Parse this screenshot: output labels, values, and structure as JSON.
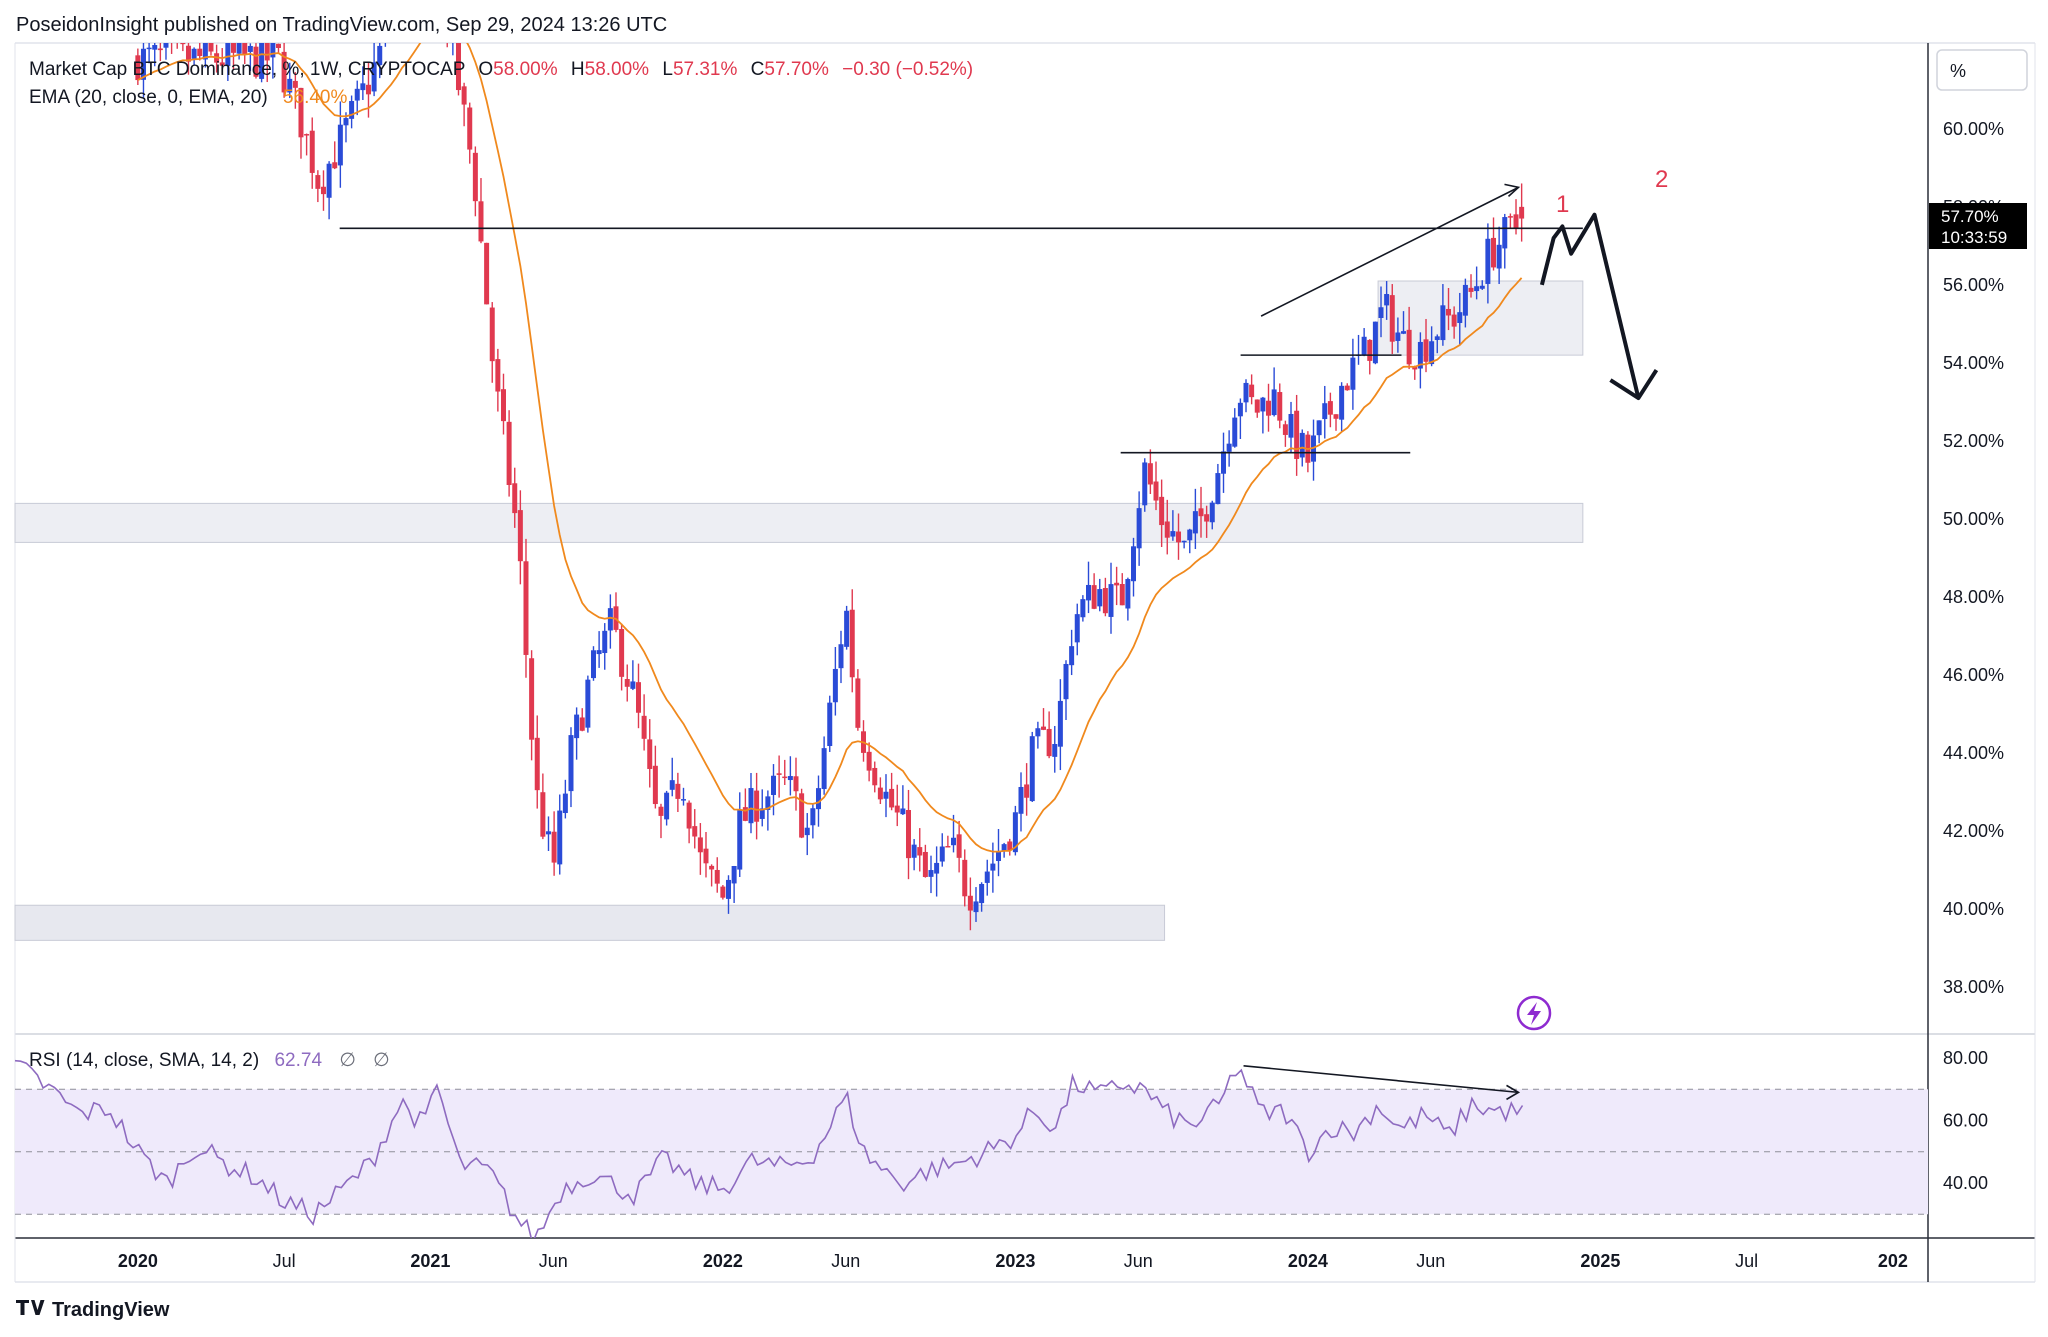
{
  "publisher_line": "PoseidonInsight published on TradingView.com, Sep 29, 2024 13:26 UTC",
  "legend": {
    "symbol": "Market Cap BTC Dominance, %, 1W, CRYPTOCAP",
    "ohlc": {
      "o_label": "O",
      "o": "58.00%",
      "h_label": "H",
      "h": "58.00%",
      "l_label": "L",
      "l": "57.31%",
      "c_label": "C",
      "c": "57.70%",
      "change": "−0.30 (−0.52%)"
    },
    "ema_label": "EMA (20, close, 0, EMA, 20)",
    "ema_value": "56.40%"
  },
  "rsi_legend": {
    "label": "RSI (14, close, SMA, 14, 2)",
    "value": "62.74",
    "extra1": "∅",
    "extra2": "∅"
  },
  "scale_mode": "%",
  "price_tag": {
    "value": "57.70%",
    "countdown": "10:33:59"
  },
  "annotations": {
    "wave1": "1",
    "wave2": "2"
  },
  "brand": "TradingView",
  "colors": {
    "up": "#2a4bd7",
    "down": "#e0394f",
    "ema": "#f0891d",
    "rsi": "#8e6bc0",
    "rsi_band": "#efeafb",
    "zone": "#e6e7ee",
    "wave_label": "#e0394f",
    "tag_bg": "#000000"
  },
  "chart_data": [
    {
      "type": "candlestick",
      "title": "Market Cap BTC Dominance, %, 1W, CRYPTOCAP",
      "ylim": [
        36.8,
        62.2
      ],
      "y_ticks": [
        "60.00%",
        "58.00%",
        "56.00%",
        "54.00%",
        "52.00%",
        "50.00%",
        "48.00%",
        "46.00%",
        "44.00%",
        "42.00%",
        "40.00%",
        "38.00%"
      ],
      "y_tick_values": [
        60,
        58,
        56,
        54,
        52,
        50,
        48,
        46,
        44,
        42,
        40,
        38
      ],
      "x_ticks": [
        "2020",
        "Jul",
        "2021",
        "Jun",
        "2022",
        "Jun",
        "2023",
        "Jun",
        "2024",
        "Jun",
        "2025",
        "Jul",
        "202"
      ],
      "x_tick_years": [
        2020.0,
        2020.5,
        2021.0,
        2021.42,
        2022.0,
        2022.42,
        2023.0,
        2023.42,
        2024.0,
        2024.42,
        2025.0,
        2025.5,
        2026.0
      ],
      "xlim": [
        2019.58,
        2026.12
      ],
      "anchors": [
        [
          2020.48,
          61.8
        ],
        [
          2020.55,
          60.4
        ],
        [
          2020.62,
          58.6
        ],
        [
          2020.7,
          59.8
        ],
        [
          2020.8,
          61.4
        ],
        [
          2020.9,
          63.5
        ],
        [
          2021.02,
          64.2
        ],
        [
          2021.08,
          61.8
        ],
        [
          2021.15,
          58.8
        ],
        [
          2021.22,
          53.5
        ],
        [
          2021.3,
          49.5
        ],
        [
          2021.36,
          43.0
        ],
        [
          2021.42,
          41.0
        ],
        [
          2021.48,
          44.0
        ],
        [
          2021.55,
          46.0
        ],
        [
          2021.62,
          47.3
        ],
        [
          2021.7,
          45.3
        ],
        [
          2021.78,
          42.0
        ],
        [
          2021.86,
          43.4
        ],
        [
          2021.93,
          41.0
        ],
        [
          2022.0,
          40.3
        ],
        [
          2022.06,
          42.2
        ],
        [
          2022.12,
          42.8
        ],
        [
          2022.22,
          43.2
        ],
        [
          2022.3,
          41.8
        ],
        [
          2022.36,
          44.8
        ],
        [
          2022.42,
          47.8
        ],
        [
          2022.46,
          44.8
        ],
        [
          2022.55,
          43.0
        ],
        [
          2022.62,
          42.0
        ],
        [
          2022.7,
          40.6
        ],
        [
          2022.78,
          41.6
        ],
        [
          2022.84,
          40.4
        ],
        [
          2022.92,
          41.2
        ],
        [
          2023.0,
          42.3
        ],
        [
          2023.06,
          44.0
        ],
        [
          2023.14,
          44.5
        ],
        [
          2023.2,
          47.5
        ],
        [
          2023.28,
          48.2
        ],
        [
          2023.36,
          47.8
        ],
        [
          2023.44,
          51.3
        ],
        [
          2023.5,
          50.0
        ],
        [
          2023.58,
          49.2
        ],
        [
          2023.64,
          50.1
        ],
        [
          2023.7,
          51.5
        ],
        [
          2023.76,
          53.3
        ],
        [
          2023.82,
          52.8
        ],
        [
          2023.88,
          53.2
        ],
        [
          2023.94,
          52.2
        ],
        [
          2024.0,
          51.5
        ],
        [
          2024.06,
          52.5
        ],
        [
          2024.12,
          53.5
        ],
        [
          2024.2,
          54.3
        ],
        [
          2024.26,
          55.4
        ],
        [
          2024.32,
          54.6
        ],
        [
          2024.38,
          54.3
        ],
        [
          2024.44,
          54.9
        ],
        [
          2024.5,
          55.2
        ],
        [
          2024.56,
          55.8
        ],
        [
          2024.62,
          56.8
        ],
        [
          2024.68,
          57.3
        ],
        [
          2024.74,
          57.7
        ]
      ],
      "last": {
        "open": 58.0,
        "high": 58.0,
        "low": 57.31,
        "close": 57.7
      },
      "ema": {
        "length": 20,
        "last": 56.4
      },
      "zones": [
        {
          "x": [
            2019.58,
            2024.94
          ],
          "y": [
            49.4,
            50.4
          ]
        },
        {
          "x": [
            2019.58,
            2023.51
          ],
          "y": [
            39.2,
            40.1
          ]
        },
        {
          "x": [
            2024.24,
            2024.94
          ],
          "y": [
            54.2,
            56.1
          ]
        }
      ],
      "trend_lines": [
        {
          "from": [
            2020.69,
            57.45
          ],
          "to": [
            2024.94,
            57.45
          ]
        },
        {
          "from": [
            2023.77,
            54.2
          ],
          "to": [
            2024.32,
            54.2
          ]
        },
        {
          "from": [
            2023.36,
            51.7
          ],
          "to": [
            2024.35,
            51.7
          ]
        },
        {
          "from": [
            2023.84,
            55.2
          ],
          "to": [
            2024.72,
            58.5
          ]
        }
      ],
      "projection_path": [
        [
          2024.8,
          56.0
        ],
        [
          2024.84,
          57.2
        ],
        [
          2024.87,
          57.5
        ],
        [
          2024.9,
          56.8
        ],
        [
          2024.98,
          57.8
        ],
        [
          2025.13,
          53.1
        ]
      ]
    },
    {
      "type": "line",
      "title": "RSI (14, close, SMA, 14, 2)",
      "ylim": [
        25,
        87
      ],
      "y_ticks": [
        "80.00",
        "60.00",
        "40.00"
      ],
      "y_tick_values": [
        80,
        60,
        40
      ],
      "bands": [
        70,
        50,
        30
      ],
      "last": 62.74,
      "anchors": [
        [
          2019.58,
          78
        ],
        [
          2019.7,
          70
        ],
        [
          2019.8,
          62
        ],
        [
          2019.9,
          64
        ],
        [
          2020.0,
          50
        ],
        [
          2020.1,
          40
        ],
        [
          2020.2,
          52
        ],
        [
          2020.3,
          46
        ],
        [
          2020.4,
          42
        ],
        [
          2020.5,
          34
        ],
        [
          2020.6,
          30
        ],
        [
          2020.7,
          38
        ],
        [
          2020.8,
          47
        ],
        [
          2020.9,
          66
        ],
        [
          2020.98,
          58
        ],
        [
          2021.02,
          72
        ],
        [
          2021.1,
          46
        ],
        [
          2021.2,
          44
        ],
        [
          2021.3,
          28
        ],
        [
          2021.36,
          22
        ],
        [
          2021.45,
          38
        ],
        [
          2021.55,
          43
        ],
        [
          2021.7,
          36
        ],
        [
          2021.8,
          48
        ],
        [
          2021.9,
          40
        ],
        [
          2022.0,
          38
        ],
        [
          2022.1,
          47
        ],
        [
          2022.2,
          45
        ],
        [
          2022.3,
          48
        ],
        [
          2022.36,
          57
        ],
        [
          2022.42,
          68
        ],
        [
          2022.48,
          50
        ],
        [
          2022.55,
          44
        ],
        [
          2022.62,
          40
        ],
        [
          2022.7,
          44
        ],
        [
          2022.8,
          46
        ],
        [
          2022.9,
          50
        ],
        [
          2023.0,
          55
        ],
        [
          2023.06,
          63
        ],
        [
          2023.14,
          58
        ],
        [
          2023.2,
          72
        ],
        [
          2023.3,
          68
        ],
        [
          2023.36,
          72
        ],
        [
          2023.44,
          70
        ],
        [
          2023.52,
          62
        ],
        [
          2023.6,
          58
        ],
        [
          2023.7,
          65
        ],
        [
          2023.76,
          78
        ],
        [
          2023.84,
          62
        ],
        [
          2023.92,
          63
        ],
        [
          2024.0,
          50
        ],
        [
          2024.08,
          58
        ],
        [
          2024.16,
          56
        ],
        [
          2024.24,
          65
        ],
        [
          2024.32,
          57
        ],
        [
          2024.4,
          62
        ],
        [
          2024.48,
          55
        ],
        [
          2024.56,
          65
        ],
        [
          2024.64,
          63
        ],
        [
          2024.74,
          62.7
        ]
      ],
      "trend_line": {
        "from": [
          2023.78,
          77.5
        ],
        "to": [
          2024.72,
          69.0
        ]
      }
    }
  ]
}
